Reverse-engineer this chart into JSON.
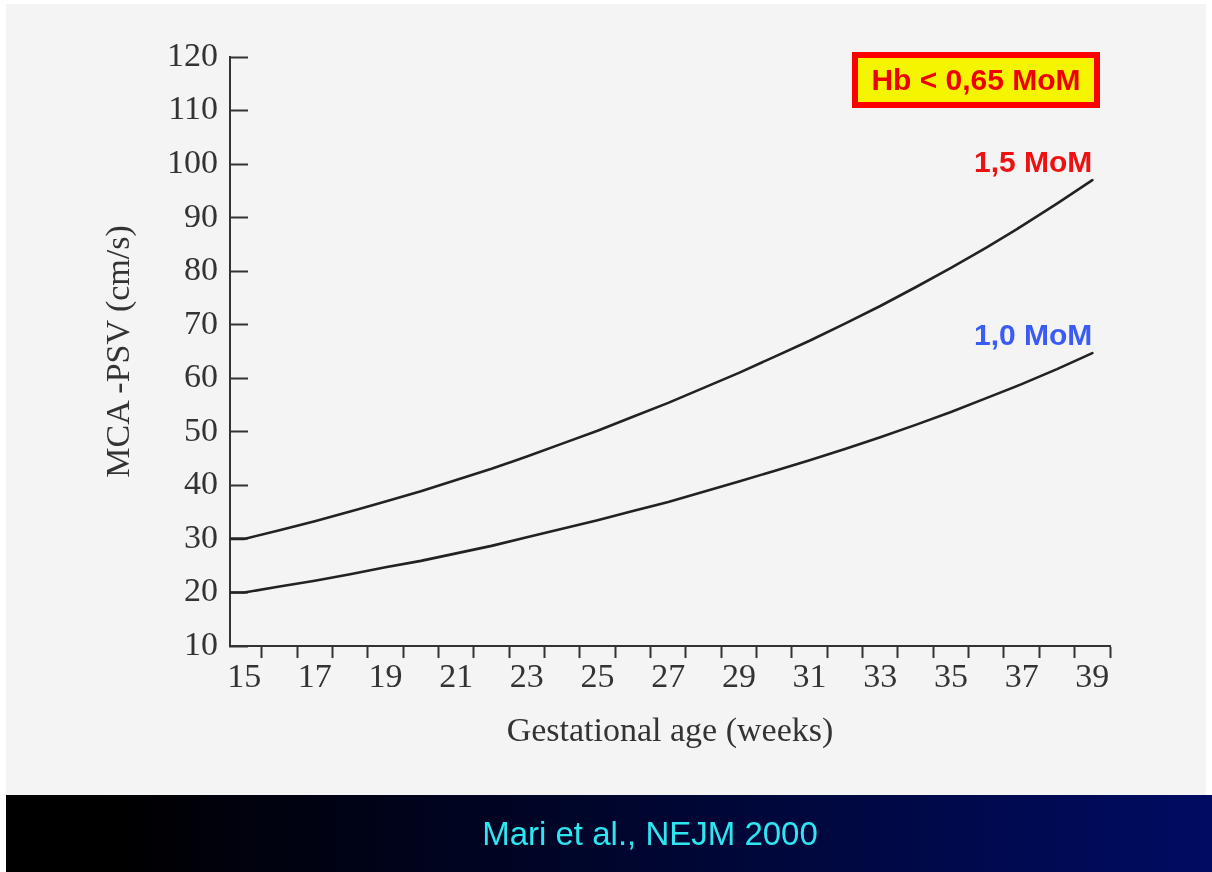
{
  "chart_data": {
    "type": "line",
    "xlabel": "Gestational age (weeks)",
    "ylabel": "MCA -PSV (cm/s)",
    "annotations": [
      "Hb < 0,65 MoM",
      "Mari et al., NEJM 2000"
    ],
    "x": [
      14.6,
      15,
      16,
      17,
      18,
      19,
      20,
      21,
      22,
      23,
      24,
      25,
      26,
      27,
      28,
      29,
      30,
      31,
      32,
      33,
      34,
      35,
      36,
      37,
      38,
      39
    ],
    "series": [
      {
        "name": "1,5 MoM",
        "color": "#222222",
        "values": [
          30,
          30,
          31.6,
          33.3,
          35.1,
          37,
          38.9,
          41,
          43.1,
          45.4,
          47.8,
          50.2,
          52.8,
          55.4,
          58.2,
          61,
          64,
          67,
          70.2,
          73.5,
          77,
          80.6,
          84.4,
          88.4,
          92.6,
          97
        ]
      },
      {
        "name": "1,0 MoM",
        "color": "#222222",
        "values": [
          20,
          20,
          21.1,
          22.2,
          23.4,
          24.7,
          25.9,
          27.3,
          28.7,
          30.3,
          31.9,
          33.5,
          35.2,
          36.9,
          38.8,
          40.7,
          42.7,
          44.7,
          46.8,
          49,
          51.3,
          53.7,
          56.3,
          58.9,
          61.7,
          64.7
        ]
      }
    ],
    "xlim": [
      14.6,
      39.5
    ],
    "xticks": [
      15,
      {
        "value": 15.5,
        "label": null
      },
      {
        "value": 16.5,
        "label": null
      },
      17,
      {
        "value": 17.5,
        "label": null
      },
      {
        "value": 18.5,
        "label": null
      },
      19,
      {
        "value": 19.5,
        "label": null
      },
      {
        "value": 20.5,
        "label": null
      },
      21,
      {
        "value": 21.5,
        "label": null
      },
      {
        "value": 22.5,
        "label": null
      },
      23,
      {
        "value": 23.5,
        "label": null
      },
      {
        "value": 24.5,
        "label": null
      },
      25,
      {
        "value": 25.5,
        "label": null
      },
      {
        "value": 26.5,
        "label": null
      },
      27,
      {
        "value": 27.5,
        "label": null
      },
      {
        "value": 28.5,
        "label": null
      },
      29,
      {
        "value": 29.5,
        "label": null
      },
      {
        "value": 30.5,
        "label": null
      },
      31,
      {
        "value": 31.5,
        "label": null
      },
      {
        "value": 32.5,
        "label": null
      },
      33,
      {
        "value": 33.5,
        "label": null
      },
      {
        "value": 34.5,
        "label": null
      },
      35,
      {
        "value": 35.5,
        "label": null
      },
      {
        "value": 36.5,
        "label": null
      },
      37,
      {
        "value": 37.5,
        "label": null
      },
      {
        "value": 38.5,
        "label": null
      },
      39,
      {
        "value": 39.5,
        "label": null
      }
    ],
    "ylim": [
      10,
      120
    ],
    "yticks": [
      10,
      20,
      30,
      40,
      50,
      60,
      70,
      80,
      90,
      100,
      110,
      120
    ]
  }
}
